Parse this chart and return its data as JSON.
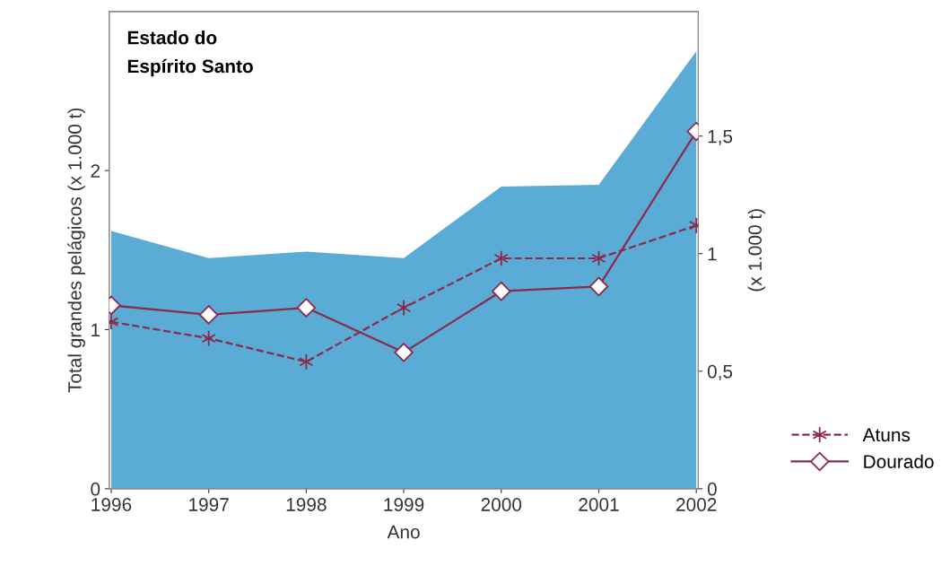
{
  "chart_data": {
    "type": "area",
    "xlabel": "Ano",
    "ylabel": "Total grandes pelágicos (x 1.000 t)",
    "y2label": "(x 1.000 t)",
    "annotations": [
      "Estado do\nEspírito Santo"
    ],
    "categories": [
      "1996",
      "1997",
      "1998",
      "1999",
      "2000",
      "2001",
      "2002"
    ],
    "series": [
      {
        "color": "#5aabd6",
        "values": [
          1.62,
          1.45,
          1.49,
          1.45,
          1.9,
          1.91,
          2.75
        ]
      },
      {
        "type": "line",
        "name": "Atuns",
        "axis": "y2",
        "color": "#8b2a4a",
        "marker": "cross",
        "line_style": "dashed",
        "values": [
          0.71,
          0.64,
          0.54,
          0.77,
          0.98,
          0.98,
          1.12
        ]
      },
      {
        "type": "line",
        "name": "Dourado",
        "axis": "y2",
        "color": "#8b2a4a",
        "marker": "diamond",
        "line_style": "solid",
        "values": [
          0.78,
          0.74,
          0.77,
          0.58,
          0.84,
          0.86,
          1.52
        ]
      }
    ],
    "ylim": [
      0,
      3
    ],
    "yticks": [
      0,
      1,
      2
    ],
    "y2lim": [
      0,
      2.03
    ],
    "y2ticks": [
      0,
      {
        "value": 0.5,
        "label": "0,5"
      },
      1,
      {
        "value": 1.5,
        "label": "1,5"
      }
    ],
    "grid": false,
    "legend": "bottom right"
  }
}
